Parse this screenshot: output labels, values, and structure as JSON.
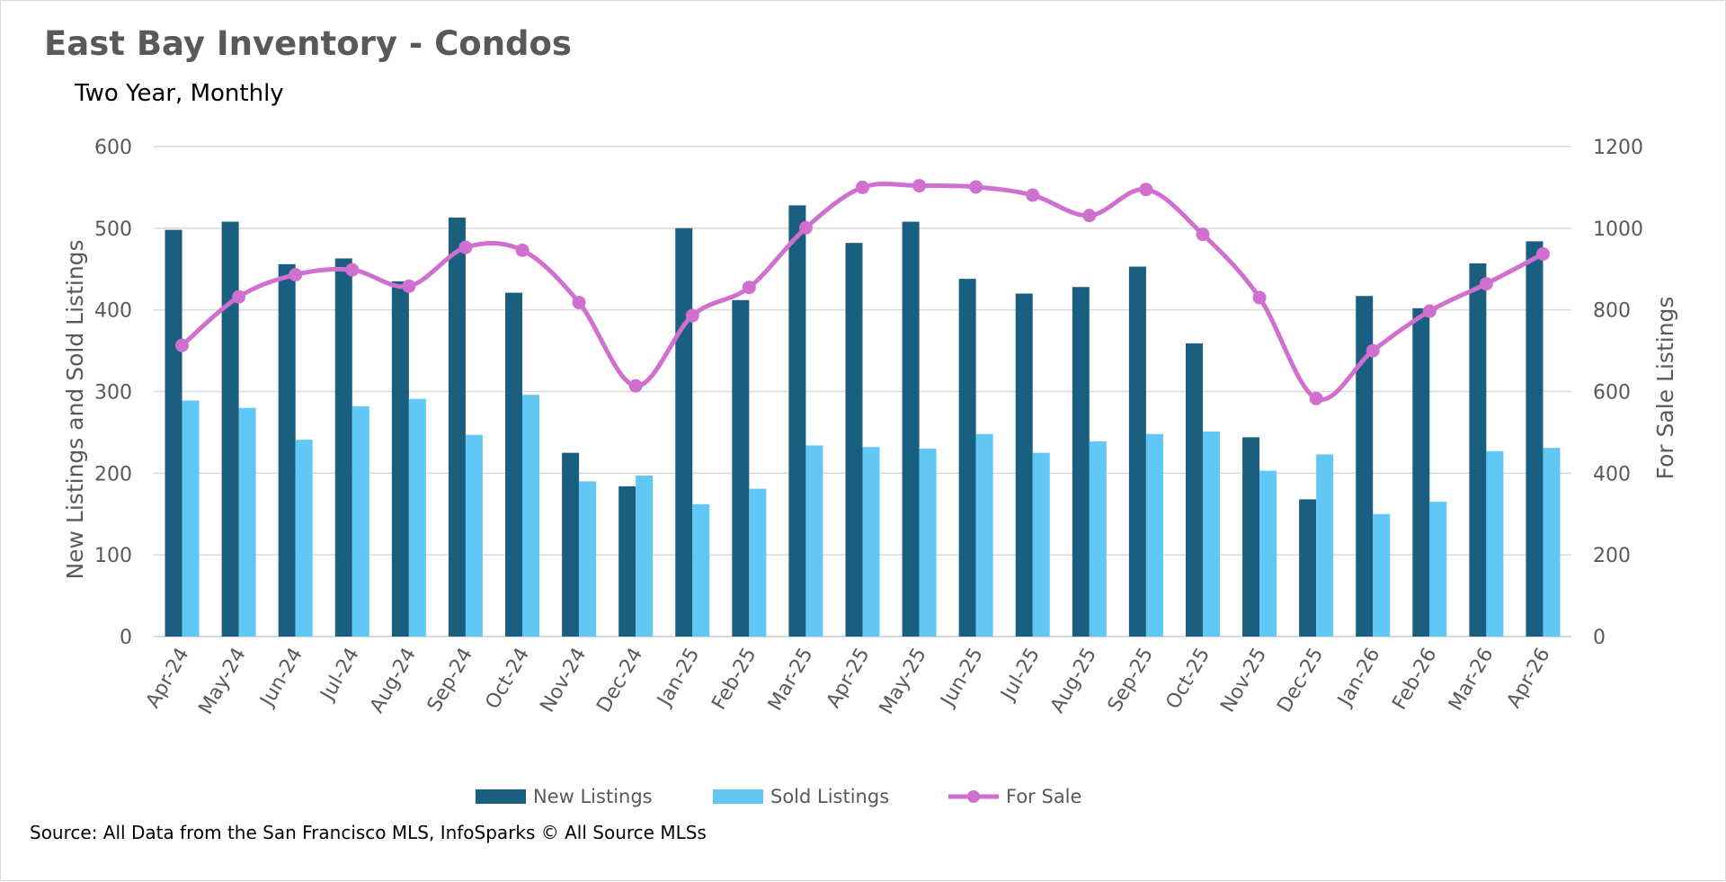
{
  "title": "East Bay Inventory - Condos",
  "subtitle": "Two Year, Monthly",
  "source": "Source: All Data from the San Francisco MLS, InfoSparks © All Source MLSs",
  "colors": {
    "new_listings": "#1a5f7f",
    "sold_listings": "#61c8f5",
    "for_sale": "#d16fd1",
    "grid": "#d9d9d9",
    "axis_text": "#595959"
  },
  "chart_data": {
    "type": "bar",
    "categories": [
      "Apr-24",
      "May-24",
      "Jun-24",
      "Jul-24",
      "Aug-24",
      "Sep-24",
      "Oct-24",
      "Nov-24",
      "Dec-24",
      "Jan-25",
      "Feb-25",
      "Mar-25",
      "Apr-25",
      "May-25",
      "Jun-25",
      "Jul-25",
      "Aug-25",
      "Sep-25",
      "Oct-25",
      "Nov-25",
      "Dec-25",
      "Jan-26",
      "Feb-26",
      "Mar-26",
      "Apr-26"
    ],
    "series": [
      {
        "name": "New Listings",
        "type": "bar",
        "axis": "left",
        "values": [
          498,
          508,
          456,
          463,
          435,
          513,
          421,
          225,
          184,
          500,
          412,
          528,
          482,
          508,
          438,
          420,
          428,
          453,
          359,
          244,
          168,
          417,
          402,
          457,
          484
        ]
      },
      {
        "name": "Sold Listings",
        "type": "bar",
        "axis": "left",
        "values": [
          289,
          280,
          241,
          282,
          291,
          247,
          296,
          190,
          197,
          162,
          181,
          234,
          232,
          230,
          248,
          225,
          239,
          248,
          251,
          203,
          223,
          150,
          165,
          227,
          231
        ]
      },
      {
        "name": "For Sale",
        "type": "line",
        "smooth": true,
        "markers": true,
        "axis": "right",
        "values": [
          713,
          832,
          886,
          898,
          858,
          953,
          946,
          818,
          614,
          786,
          855,
          1001,
          1100,
          1104,
          1101,
          1081,
          1031,
          1095,
          985,
          830,
          583,
          700,
          797,
          864,
          937
        ]
      }
    ],
    "ylabel": "New Listings and Sold Listings",
    "y2label": "For Sale Listings",
    "ylim": [
      0,
      600
    ],
    "y2lim": [
      0,
      1200
    ],
    "yticks": [
      "0",
      "100",
      "200",
      "300",
      "400",
      "500",
      "600"
    ],
    "y2ticks": [
      "0",
      "200",
      "400",
      "600",
      "800",
      "1000",
      "1200"
    ],
    "grid": true,
    "legend": "bottom"
  }
}
